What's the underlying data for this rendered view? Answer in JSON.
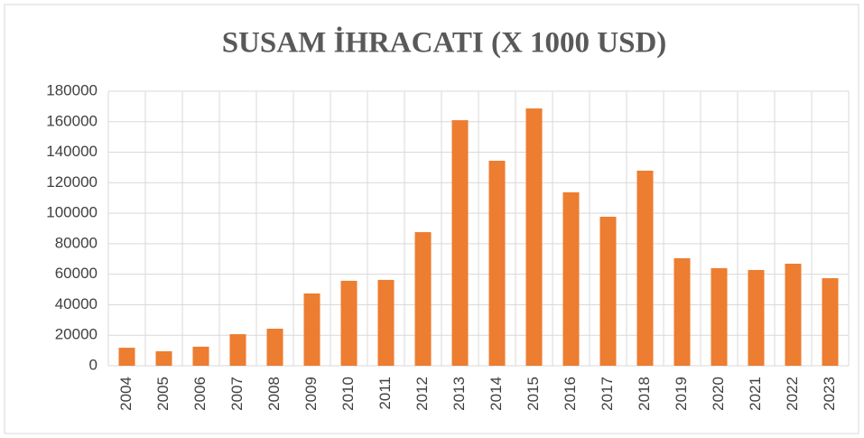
{
  "chart_data": {
    "type": "bar",
    "title": "SUSAM İHRACATI (X 1000 USD)",
    "categories": [
      "2004",
      "2005",
      "2006",
      "2007",
      "2008",
      "2009",
      "2010",
      "2011",
      "2012",
      "2013",
      "2014",
      "2015",
      "2016",
      "2017",
      "2018",
      "2019",
      "2020",
      "2021",
      "2022",
      "2023"
    ],
    "values": [
      11800,
      9500,
      12500,
      20700,
      24300,
      47400,
      55700,
      56300,
      87600,
      161000,
      134400,
      168700,
      113700,
      97700,
      127900,
      70500,
      64000,
      62800,
      66900,
      57400
    ],
    "color": "#ed7d31",
    "ylim": [
      0,
      180000
    ],
    "yticks": [
      0,
      20000,
      40000,
      60000,
      80000,
      100000,
      120000,
      140000,
      160000,
      180000
    ],
    "grid": true
  }
}
